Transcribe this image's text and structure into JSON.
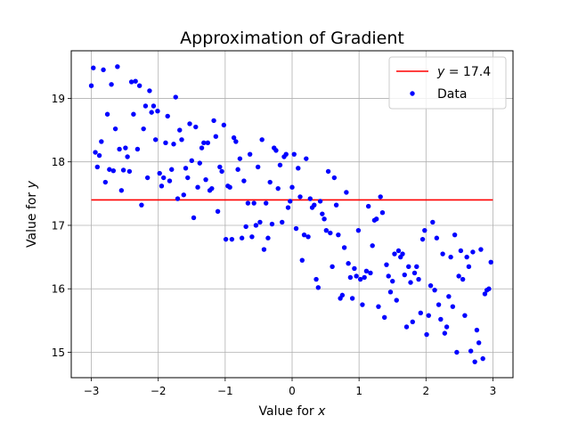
{
  "chart_data": {
    "type": "scatter",
    "title": "Approximation of Gradient",
    "xlabel_prefix": "Value for ",
    "xlabel_var": "x",
    "ylabel_prefix": "Value for ",
    "ylabel_var": "y",
    "xlim": [
      -3.3,
      3.3
    ],
    "ylim": [
      14.6,
      19.75
    ],
    "xticks": [
      -3,
      -2,
      -1,
      0,
      1,
      2,
      3
    ],
    "xtick_labels": [
      "−3",
      "−2",
      "−1",
      "0",
      "1",
      "2",
      "3"
    ],
    "yticks": [
      15,
      16,
      17,
      18,
      19
    ],
    "ytick_labels": [
      "15",
      "16",
      "17",
      "18",
      "19"
    ],
    "grid": true,
    "legend_position": "top-right",
    "colors": {
      "line": "#ff0000",
      "points": "#0000ff",
      "grid": "#b0b0b0"
    },
    "series": [
      {
        "name": "y = 17.4",
        "legend_var": "y",
        "legend_rest": " = 17.4",
        "type": "line",
        "x": [
          -3.0,
          3.0
        ],
        "y": [
          17.4,
          17.4
        ]
      },
      {
        "name": "Data",
        "type": "scatter",
        "points": [
          [
            -3.0,
            19.2
          ],
          [
            -2.97,
            19.48
          ],
          [
            -2.94,
            18.15
          ],
          [
            -2.91,
            17.92
          ],
          [
            -2.88,
            18.1
          ],
          [
            -2.85,
            18.32
          ],
          [
            -2.82,
            19.45
          ],
          [
            -2.79,
            17.68
          ],
          [
            -2.76,
            18.75
          ],
          [
            -2.73,
            17.88
          ],
          [
            -2.7,
            19.22
          ],
          [
            -2.67,
            17.86
          ],
          [
            -2.64,
            18.52
          ],
          [
            -2.61,
            19.5
          ],
          [
            -2.58,
            18.2
          ],
          [
            -2.55,
            17.55
          ],
          [
            -2.52,
            17.87
          ],
          [
            -2.49,
            18.22
          ],
          [
            -2.46,
            18.08
          ],
          [
            -2.43,
            17.85
          ],
          [
            -2.4,
            19.26
          ],
          [
            -2.37,
            18.75
          ],
          [
            -2.34,
            19.27
          ],
          [
            -2.31,
            18.2
          ],
          [
            -2.28,
            19.2
          ],
          [
            -2.25,
            17.32
          ],
          [
            -2.22,
            18.52
          ],
          [
            -2.19,
            18.88
          ],
          [
            -2.16,
            17.75
          ],
          [
            -2.13,
            19.12
          ],
          [
            -2.1,
            18.78
          ],
          [
            -2.07,
            18.88
          ],
          [
            -2.04,
            18.35
          ],
          [
            -2.01,
            18.8
          ],
          [
            -1.98,
            17.82
          ],
          [
            -1.95,
            17.62
          ],
          [
            -1.92,
            17.75
          ],
          [
            -1.89,
            18.3
          ],
          [
            -1.86,
            18.72
          ],
          [
            -1.83,
            17.7
          ],
          [
            -1.8,
            17.88
          ],
          [
            -1.77,
            18.28
          ],
          [
            -1.74,
            19.02
          ],
          [
            -1.71,
            17.42
          ],
          [
            -1.68,
            18.5
          ],
          [
            -1.65,
            18.35
          ],
          [
            -1.62,
            17.48
          ],
          [
            -1.59,
            17.9
          ],
          [
            -1.56,
            17.75
          ],
          [
            -1.53,
            18.6
          ],
          [
            -1.5,
            18.02
          ],
          [
            -1.47,
            17.12
          ],
          [
            -1.44,
            18.55
          ],
          [
            -1.41,
            17.6
          ],
          [
            -1.38,
            17.98
          ],
          [
            -1.35,
            18.22
          ],
          [
            -1.32,
            18.3
          ],
          [
            -1.29,
            17.72
          ],
          [
            -1.26,
            18.3
          ],
          [
            -1.23,
            17.55
          ],
          [
            -1.2,
            17.58
          ],
          [
            -1.17,
            18.65
          ],
          [
            -1.14,
            18.4
          ],
          [
            -1.11,
            17.22
          ],
          [
            -1.08,
            17.92
          ],
          [
            -1.05,
            17.85
          ],
          [
            -1.02,
            18.58
          ],
          [
            -0.99,
            16.78
          ],
          [
            -0.96,
            17.62
          ],
          [
            -0.93,
            17.6
          ],
          [
            -0.9,
            16.78
          ],
          [
            -0.87,
            18.38
          ],
          [
            -0.84,
            18.32
          ],
          [
            -0.81,
            17.88
          ],
          [
            -0.78,
            18.05
          ],
          [
            -0.75,
            16.8
          ],
          [
            -0.72,
            17.7
          ],
          [
            -0.69,
            16.98
          ],
          [
            -0.66,
            17.35
          ],
          [
            -0.63,
            18.12
          ],
          [
            -0.6,
            16.82
          ],
          [
            -0.57,
            17.35
          ],
          [
            -0.54,
            17.0
          ],
          [
            -0.51,
            17.92
          ],
          [
            -0.48,
            17.05
          ],
          [
            -0.45,
            18.35
          ],
          [
            -0.42,
            16.62
          ],
          [
            -0.39,
            17.35
          ],
          [
            -0.36,
            16.8
          ],
          [
            -0.33,
            17.68
          ],
          [
            -0.3,
            17.02
          ],
          [
            -0.27,
            18.22
          ],
          [
            -0.24,
            18.18
          ],
          [
            -0.21,
            17.58
          ],
          [
            -0.18,
            17.95
          ],
          [
            -0.15,
            17.05
          ],
          [
            -0.12,
            18.08
          ],
          [
            -0.09,
            18.12
          ],
          [
            -0.06,
            17.28
          ],
          [
            -0.03,
            17.38
          ],
          [
            0.0,
            17.6
          ],
          [
            0.03,
            18.12
          ],
          [
            0.06,
            16.95
          ],
          [
            0.09,
            17.9
          ],
          [
            0.12,
            17.45
          ],
          [
            0.15,
            16.45
          ],
          [
            0.18,
            16.85
          ],
          [
            0.21,
            18.05
          ],
          [
            0.24,
            16.82
          ],
          [
            0.27,
            17.42
          ],
          [
            0.3,
            17.28
          ],
          [
            0.33,
            17.32
          ],
          [
            0.36,
            16.15
          ],
          [
            0.39,
            16.02
          ],
          [
            0.42,
            17.38
          ],
          [
            0.45,
            17.18
          ],
          [
            0.48,
            17.1
          ],
          [
            0.51,
            16.92
          ],
          [
            0.54,
            17.85
          ],
          [
            0.57,
            16.88
          ],
          [
            0.6,
            16.35
          ],
          [
            0.63,
            17.75
          ],
          [
            0.66,
            17.32
          ],
          [
            0.69,
            16.85
          ],
          [
            0.72,
            15.85
          ],
          [
            0.75,
            15.9
          ],
          [
            0.78,
            16.65
          ],
          [
            0.81,
            17.52
          ],
          [
            0.84,
            16.4
          ],
          [
            0.87,
            16.18
          ],
          [
            0.9,
            15.85
          ],
          [
            0.93,
            16.32
          ],
          [
            0.96,
            16.2
          ],
          [
            0.99,
            16.92
          ],
          [
            1.02,
            16.15
          ],
          [
            1.05,
            15.75
          ],
          [
            1.08,
            16.18
          ],
          [
            1.11,
            16.28
          ],
          [
            1.14,
            17.3
          ],
          [
            1.17,
            16.25
          ],
          [
            1.2,
            16.68
          ],
          [
            1.23,
            17.08
          ],
          [
            1.26,
            17.1
          ],
          [
            1.29,
            15.72
          ],
          [
            1.32,
            17.45
          ],
          [
            1.35,
            17.2
          ],
          [
            1.38,
            15.55
          ],
          [
            1.41,
            16.38
          ],
          [
            1.44,
            16.2
          ],
          [
            1.47,
            15.95
          ],
          [
            1.5,
            16.12
          ],
          [
            1.53,
            16.55
          ],
          [
            1.56,
            15.82
          ],
          [
            1.59,
            16.6
          ],
          [
            1.62,
            16.5
          ],
          [
            1.65,
            16.55
          ],
          [
            1.68,
            16.22
          ],
          [
            1.71,
            15.4
          ],
          [
            1.74,
            16.35
          ],
          [
            1.77,
            16.1
          ],
          [
            1.8,
            15.48
          ],
          [
            1.83,
            16.25
          ],
          [
            1.86,
            16.35
          ],
          [
            1.89,
            16.15
          ],
          [
            1.92,
            15.62
          ],
          [
            1.95,
            16.78
          ],
          [
            1.98,
            16.92
          ],
          [
            2.01,
            15.28
          ],
          [
            2.04,
            15.58
          ],
          [
            2.07,
            16.05
          ],
          [
            2.1,
            17.05
          ],
          [
            2.13,
            15.98
          ],
          [
            2.16,
            16.8
          ],
          [
            2.19,
            15.75
          ],
          [
            2.22,
            15.52
          ],
          [
            2.25,
            16.55
          ],
          [
            2.28,
            15.3
          ],
          [
            2.31,
            15.4
          ],
          [
            2.34,
            15.88
          ],
          [
            2.37,
            16.5
          ],
          [
            2.4,
            15.72
          ],
          [
            2.43,
            16.85
          ],
          [
            2.46,
            15.0
          ],
          [
            2.49,
            16.2
          ],
          [
            2.52,
            16.6
          ],
          [
            2.55,
            16.15
          ],
          [
            2.58,
            15.58
          ],
          [
            2.61,
            16.5
          ],
          [
            2.64,
            16.35
          ],
          [
            2.67,
            15.02
          ],
          [
            2.7,
            16.58
          ],
          [
            2.73,
            14.85
          ],
          [
            2.76,
            15.35
          ],
          [
            2.79,
            15.15
          ],
          [
            2.82,
            16.62
          ],
          [
            2.85,
            14.9
          ],
          [
            2.88,
            15.92
          ],
          [
            2.91,
            15.98
          ],
          [
            2.94,
            16.0
          ],
          [
            2.97,
            16.42
          ]
        ]
      }
    ]
  }
}
